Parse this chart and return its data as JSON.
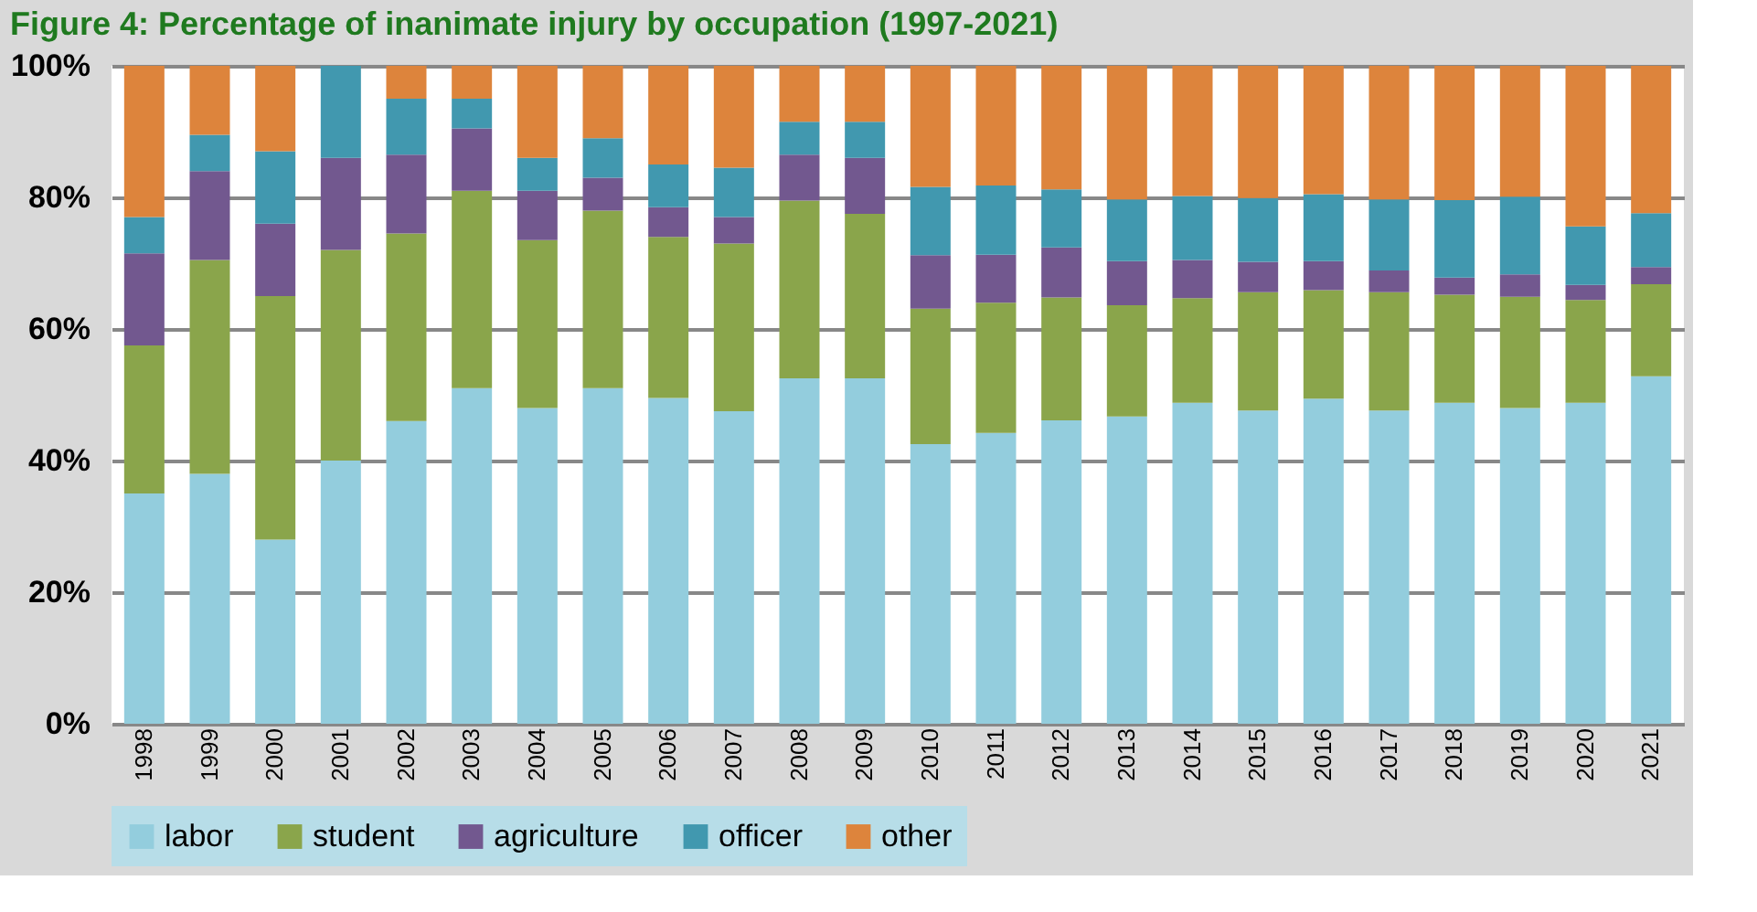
{
  "chart_data": {
    "type": "bar",
    "stacked": true,
    "title": "Figure 4: Percentage of inanimate injury by occupation (1997-2021)",
    "categories": [
      "1998",
      "1999",
      "2000",
      "2001",
      "2002",
      "2003",
      "2004",
      "2005",
      "2006",
      "2007",
      "2008",
      "2009",
      "2010",
      "2011",
      "2012",
      "2013",
      "2014",
      "2015",
      "2016",
      "2017",
      "2018",
      "2019",
      "2020",
      "2021"
    ],
    "series": [
      {
        "name": "labor",
        "color": "#93cddd",
        "values": [
          35,
          38,
          28,
          40,
          46,
          51,
          48,
          51,
          49.5,
          47.5,
          52.5,
          52.5,
          42.5,
          44.2,
          46.1,
          46.7,
          48.8,
          47.6,
          49.4,
          47.6,
          48.8,
          48.0,
          48.8,
          52.8
        ]
      },
      {
        "name": "student",
        "color": "#8aa54b",
        "values": [
          22.5,
          32.5,
          37,
          32,
          28.5,
          30,
          25.5,
          27,
          24.5,
          25.5,
          27,
          25,
          20.6,
          19.8,
          18.7,
          16.9,
          15.9,
          18.0,
          16.5,
          18.0,
          16.4,
          16.9,
          15.6,
          14.0
        ]
      },
      {
        "name": "agriculture",
        "color": "#72588f",
        "values": [
          14,
          13.5,
          11,
          14,
          12,
          9.5,
          7.5,
          5,
          4.5,
          4,
          7,
          8.5,
          8.1,
          7.3,
          7.6,
          6.7,
          5.8,
          4.6,
          4.4,
          3.3,
          2.6,
          3.4,
          2.3,
          2.6
        ]
      },
      {
        "name": "officer",
        "color": "#4198af",
        "values": [
          5.5,
          5.5,
          11,
          14,
          8.5,
          4.5,
          5,
          6,
          6.5,
          7.5,
          5,
          5.5,
          10.4,
          10.5,
          8.8,
          9.4,
          9.7,
          9.7,
          10.2,
          10.8,
          11.8,
          11.8,
          8.9,
          8.2
        ]
      },
      {
        "name": "other",
        "color": "#dd843c",
        "values": [
          23,
          10.5,
          13,
          0,
          5,
          5,
          14,
          11,
          15,
          15.5,
          8.5,
          8.5,
          18.4,
          18.2,
          18.8,
          20.3,
          19.8,
          20.1,
          19.5,
          20.3,
          20.4,
          19.9,
          24.4,
          22.4
        ]
      }
    ],
    "ylim": [
      0,
      100
    ],
    "yticks": [
      {
        "value": 0,
        "label": "0%"
      },
      {
        "value": 20,
        "label": "20%"
      },
      {
        "value": 40,
        "label": "40%"
      },
      {
        "value": 60,
        "label": "60%"
      },
      {
        "value": 80,
        "label": "80%"
      },
      {
        "value": 100,
        "label": "100%"
      }
    ],
    "grid": "y",
    "legend": "bottom"
  }
}
